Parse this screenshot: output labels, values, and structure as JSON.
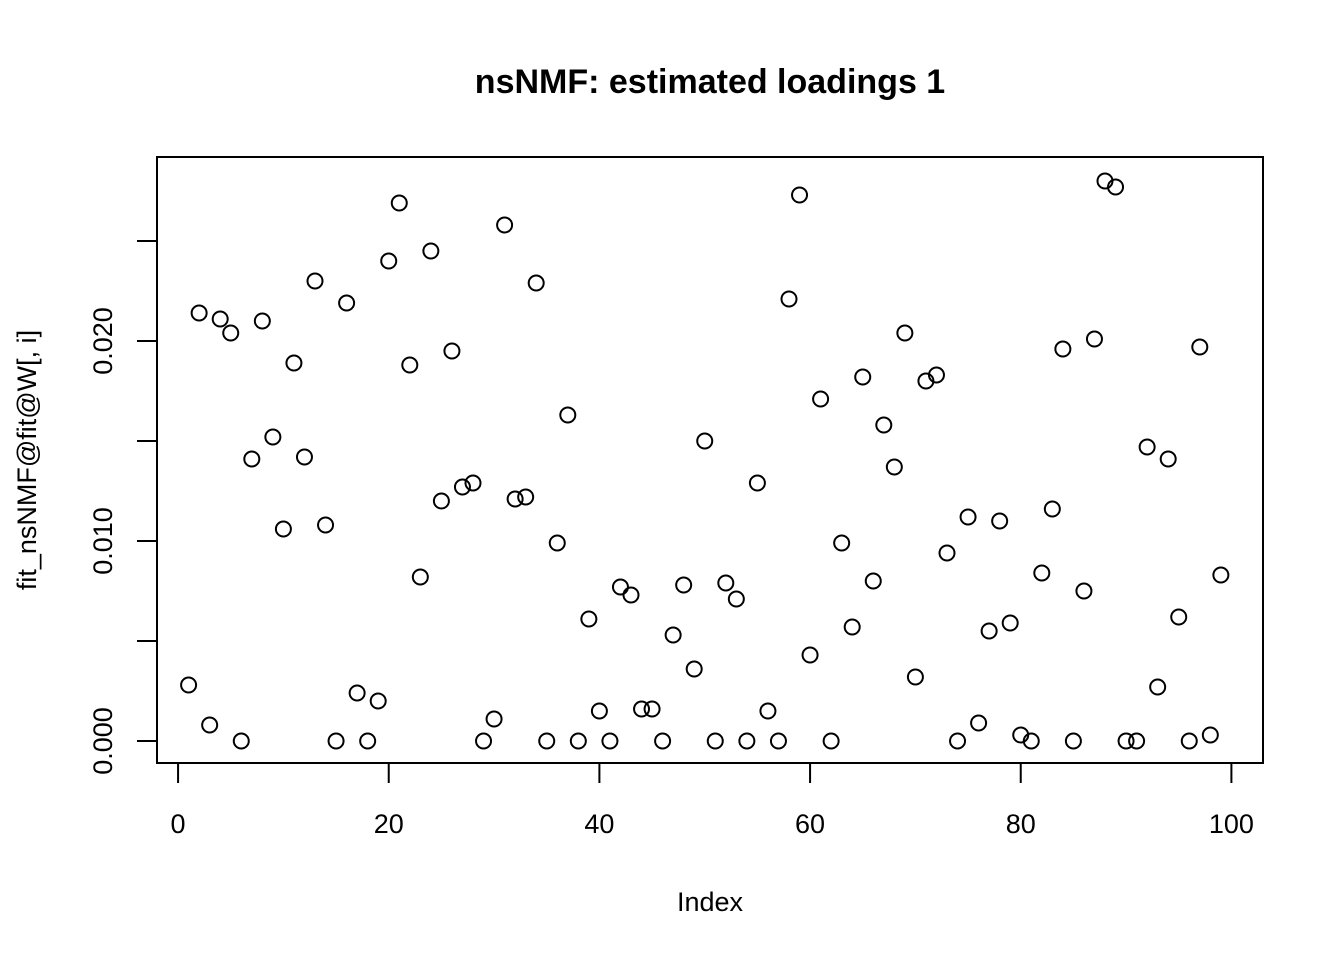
{
  "chart_data": {
    "type": "scatter",
    "title": "nsNMF: estimated loadings 1",
    "xlabel": "Index",
    "ylabel": "fit_nsNMF@fit@W[, i]",
    "xlim": [
      -2,
      103
    ],
    "ylim": [
      -0.0011,
      0.0292
    ],
    "x_ticks": [
      0,
      20,
      40,
      60,
      80,
      100
    ],
    "x_tick_labels": [
      "0",
      "20",
      "40",
      "60",
      "80",
      "100"
    ],
    "y_ticks": [
      0,
      0.005,
      0.01,
      0.015,
      0.02,
      0.025
    ],
    "y_tick_labels": [
      "0.000",
      "",
      "0.010",
      "",
      "0.020",
      ""
    ],
    "grid": false,
    "marker": "open-circle",
    "color": "#000000",
    "series": [
      {
        "x": [
          1,
          2,
          3,
          4,
          5,
          6,
          7,
          8,
          9,
          10,
          11,
          12,
          13,
          14,
          15,
          16,
          17,
          18,
          19,
          20,
          21,
          22,
          23,
          24,
          25,
          26,
          27,
          28,
          29,
          30,
          31,
          32,
          33,
          34,
          35,
          36,
          37,
          38,
          39,
          40,
          41,
          42,
          43,
          44,
          45,
          46,
          47,
          48,
          49,
          50,
          51,
          52,
          53,
          54,
          55,
          56,
          57,
          58,
          59,
          60,
          61,
          62,
          63,
          64,
          65,
          66,
          67,
          68,
          69,
          70,
          71,
          72,
          73,
          74,
          75,
          76,
          77,
          78,
          79,
          80,
          81,
          82,
          83,
          84,
          85,
          86,
          87,
          88,
          89,
          90,
          91,
          92,
          93,
          94,
          95,
          96,
          97,
          98,
          99
        ],
        "values": [
          0.0028,
          0.0214,
          0.0008,
          0.0211,
          0.0204,
          0.0,
          0.0141,
          0.021,
          0.0152,
          0.0106,
          0.0189,
          0.0142,
          0.023,
          0.0108,
          0.0,
          0.0219,
          0.0024,
          0.0,
          0.002,
          0.024,
          0.0269,
          0.0188,
          0.0082,
          0.0245,
          0.012,
          0.0195,
          0.0127,
          0.0129,
          0.0,
          0.0011,
          0.0258,
          0.0121,
          0.0122,
          0.0229,
          0.0,
          0.0099,
          0.0163,
          0.0,
          0.0061,
          0.0015,
          0.0,
          0.0077,
          0.0073,
          0.0016,
          0.0016,
          0.0,
          0.0053,
          0.0078,
          0.0036,
          0.015,
          0.0,
          0.0079,
          0.0071,
          0.0,
          0.0129,
          0.0015,
          0.0,
          0.0221,
          0.0273,
          0.0043,
          0.0171,
          0.0,
          0.0099,
          0.0057,
          0.0182,
          0.008,
          0.0158,
          0.0137,
          0.0204,
          0.0032,
          0.018,
          0.0183,
          0.0094,
          0.0,
          0.0112,
          0.0009,
          0.0055,
          0.011,
          0.0059,
          0.0003,
          0.0,
          0.0084,
          0.0116,
          0.0196,
          0.0,
          0.0075,
          0.0201,
          0.028,
          0.0277,
          0.0,
          0.0,
          0.0147,
          0.0027,
          0.0141,
          0.0062,
          0.0,
          0.0197,
          0.0003,
          0.0083
        ]
      }
    ]
  }
}
